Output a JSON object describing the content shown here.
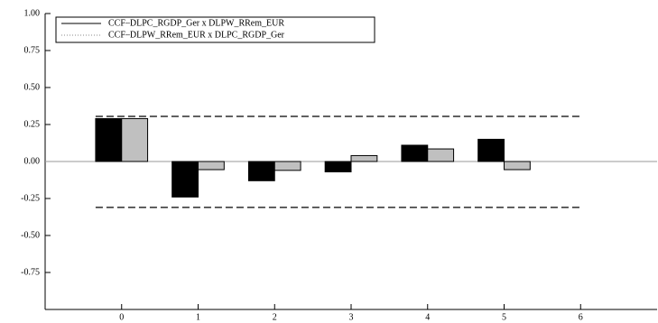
{
  "chart_data": {
    "type": "bar",
    "x": [
      0,
      1,
      2,
      3,
      4,
      5,
      6
    ],
    "series": [
      {
        "name": "CCF–DLPC_RGDP_Ger x DLPW_RRem_EUR",
        "color": "#000000",
        "values": [
          0.29,
          -0.24,
          -0.13,
          -0.07,
          0.11,
          0.15,
          null
        ]
      },
      {
        "name": "CCF–DLPW_RRem_EUR x DLPC_RGDP_Ger",
        "color": "#c0c0c0",
        "values": [
          0.29,
          -0.055,
          -0.06,
          0.04,
          0.085,
          -0.055,
          null
        ]
      }
    ],
    "confidence_bands": [
      0.305,
      -0.31
    ],
    "xlim": [
      -1,
      7
    ],
    "xticks": [
      0,
      1,
      2,
      3,
      4,
      5,
      6
    ],
    "ylim": [
      -1,
      1
    ],
    "yticks": [
      {
        "value": 1,
        "label": "1.00"
      },
      {
        "value": 0.75,
        "label": "0.75"
      },
      {
        "value": 0.5,
        "label": "0.50"
      },
      {
        "value": 0.25,
        "label": "0.25"
      },
      {
        "value": 0,
        "label": "0.00"
      },
      {
        "value": -0.25,
        "label": "-0.25"
      },
      {
        "value": -0.5,
        "label": "-0.50"
      },
      {
        "value": -0.75,
        "label": "-0.75"
      }
    ],
    "legend": "upper left"
  }
}
